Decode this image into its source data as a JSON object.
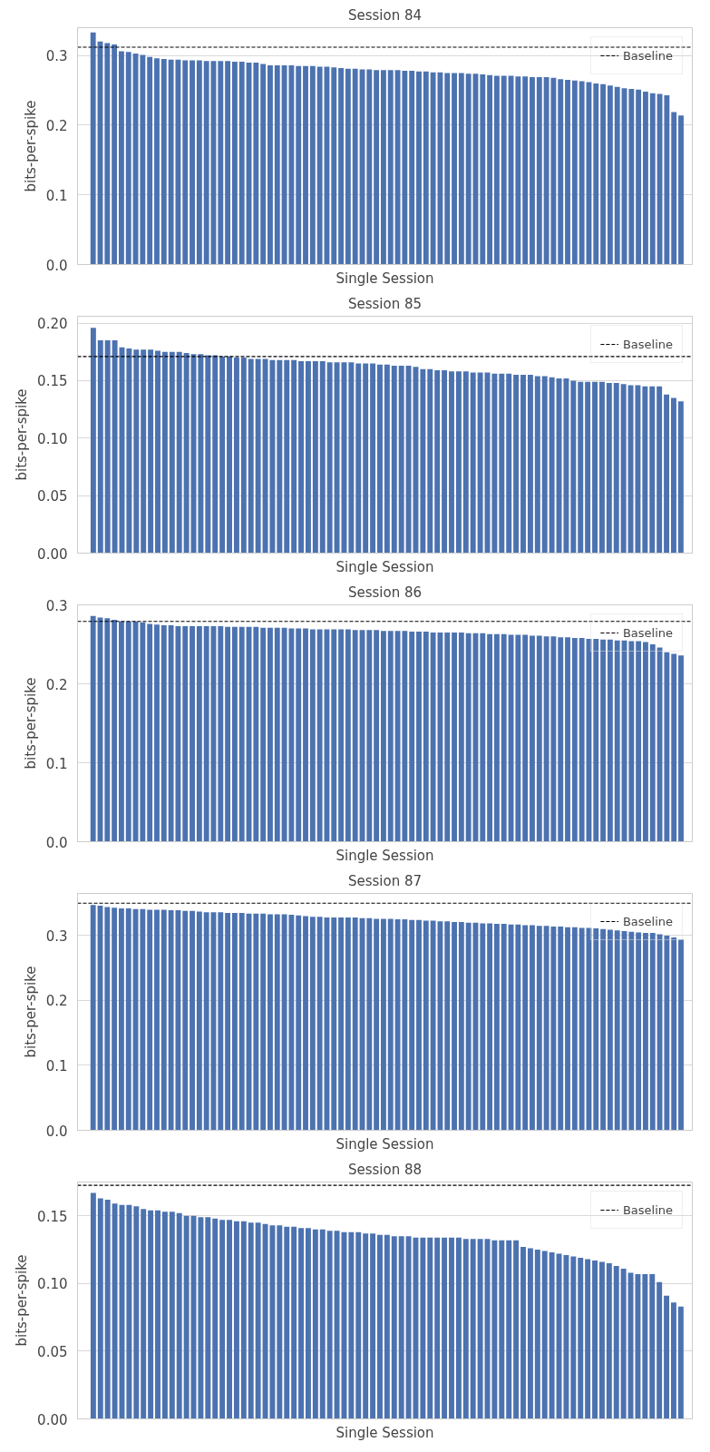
{
  "chart_data": [
    {
      "type": "bar",
      "title": "Session 84",
      "xlabel": "Single Session",
      "ylabel": "bits-per-spike",
      "color": "#4c72b0",
      "grid": "y",
      "legend": "top right",
      "tick_labels": "y",
      "categories": [
        null,
        null,
        null,
        null,
        null,
        null,
        null,
        null,
        null,
        null,
        null,
        null,
        null,
        null,
        null,
        null,
        null,
        null,
        null,
        null,
        null,
        null,
        null,
        null,
        null,
        null,
        null,
        null,
        null,
        null,
        null,
        null,
        null,
        null,
        null,
        null,
        null,
        null,
        null,
        null,
        null,
        null,
        null,
        null,
        null,
        null,
        null,
        null,
        null,
        null,
        null,
        null,
        null,
        null,
        null,
        null,
        null,
        null,
        null,
        null,
        null,
        null,
        null,
        null,
        null,
        null,
        null,
        null,
        null,
        null,
        null,
        null,
        null,
        null,
        null,
        null,
        null,
        null,
        null,
        null,
        null,
        null,
        null,
        null
      ],
      "values": [
        0.333,
        0.32,
        0.318,
        0.316,
        0.306,
        0.305,
        0.303,
        0.301,
        0.298,
        0.296,
        0.295,
        0.294,
        0.294,
        0.293,
        0.293,
        0.293,
        0.292,
        0.292,
        0.292,
        0.292,
        0.291,
        0.291,
        0.29,
        0.29,
        0.288,
        0.286,
        0.286,
        0.286,
        0.286,
        0.285,
        0.285,
        0.285,
        0.284,
        0.284,
        0.283,
        0.282,
        0.281,
        0.281,
        0.28,
        0.28,
        0.279,
        0.279,
        0.279,
        0.279,
        0.278,
        0.278,
        0.277,
        0.277,
        0.276,
        0.276,
        0.275,
        0.275,
        0.275,
        0.274,
        0.274,
        0.273,
        0.272,
        0.271,
        0.271,
        0.271,
        0.27,
        0.27,
        0.269,
        0.269,
        0.269,
        0.268,
        0.266,
        0.265,
        0.264,
        0.263,
        0.262,
        0.26,
        0.259,
        0.257,
        0.255,
        0.253,
        0.252,
        0.251,
        0.248,
        0.246,
        0.245,
        0.243,
        0.219,
        0.214
      ],
      "ylim": [
        0,
        0.34
      ],
      "yticks": [
        {
          "value": 0,
          "label": "0.0"
        },
        0.1,
        0.2,
        0.3
      ],
      "ref_lines": [
        {
          "axis": "y",
          "value": 0.312,
          "label": "Baseline",
          "color": "#000000",
          "line_style": "dashed"
        }
      ]
    },
    {
      "type": "bar",
      "title": "Session 85",
      "xlabel": "Single Session",
      "ylabel": "bits-per-spike",
      "color": "#4c72b0",
      "grid": "y",
      "legend": "top right",
      "tick_labels": "y",
      "categories": [
        null,
        null,
        null,
        null,
        null,
        null,
        null,
        null,
        null,
        null,
        null,
        null,
        null,
        null,
        null,
        null,
        null,
        null,
        null,
        null,
        null,
        null,
        null,
        null,
        null,
        null,
        null,
        null,
        null,
        null,
        null,
        null,
        null,
        null,
        null,
        null,
        null,
        null,
        null,
        null,
        null,
        null,
        null,
        null,
        null,
        null,
        null,
        null,
        null,
        null,
        null,
        null,
        null,
        null,
        null,
        null,
        null,
        null,
        null,
        null,
        null,
        null,
        null,
        null,
        null,
        null,
        null,
        null,
        null,
        null,
        null,
        null,
        null,
        null,
        null,
        null,
        null,
        null,
        null,
        null,
        null,
        null,
        null
      ],
      "values": [
        0.196,
        0.185,
        0.185,
        0.185,
        0.179,
        0.178,
        0.177,
        0.177,
        0.177,
        0.176,
        0.175,
        0.175,
        0.175,
        0.174,
        0.173,
        0.173,
        0.172,
        0.172,
        0.171,
        0.171,
        0.17,
        0.17,
        0.169,
        0.169,
        0.169,
        0.168,
        0.168,
        0.168,
        0.168,
        0.167,
        0.167,
        0.167,
        0.167,
        0.166,
        0.166,
        0.166,
        0.166,
        0.165,
        0.165,
        0.165,
        0.164,
        0.164,
        0.163,
        0.163,
        0.163,
        0.162,
        0.16,
        0.16,
        0.159,
        0.159,
        0.158,
        0.158,
        0.158,
        0.157,
        0.157,
        0.157,
        0.156,
        0.156,
        0.156,
        0.155,
        0.155,
        0.155,
        0.154,
        0.154,
        0.153,
        0.152,
        0.152,
        0.15,
        0.149,
        0.149,
        0.149,
        0.149,
        0.148,
        0.148,
        0.147,
        0.146,
        0.146,
        0.145,
        0.145,
        0.145,
        0.138,
        0.135,
        0.132
      ],
      "ylim": [
        0,
        0.206
      ],
      "yticks": [
        {
          "value": 0,
          "label": "0.00"
        },
        0.05,
        {
          "value": 0.1,
          "label": "0.10"
        },
        0.15,
        {
          "value": 0.2,
          "label": "0.20"
        }
      ],
      "ref_lines": [
        {
          "axis": "y",
          "value": 0.171,
          "label": "Baseline",
          "color": "#000000",
          "line_style": "dashed"
        }
      ]
    },
    {
      "type": "bar",
      "title": "Session 86",
      "xlabel": "Single Session",
      "ylabel": "bits-per-spike",
      "color": "#4c72b0",
      "grid": "y",
      "legend": "top right",
      "tick_labels": "y",
      "categories": [
        null,
        null,
        null,
        null,
        null,
        null,
        null,
        null,
        null,
        null,
        null,
        null,
        null,
        null,
        null,
        null,
        null,
        null,
        null,
        null,
        null,
        null,
        null,
        null,
        null,
        null,
        null,
        null,
        null,
        null,
        null,
        null,
        null,
        null,
        null,
        null,
        null,
        null,
        null,
        null,
        null,
        null,
        null,
        null,
        null,
        null,
        null,
        null,
        null,
        null,
        null,
        null,
        null,
        null,
        null,
        null,
        null,
        null,
        null,
        null,
        null,
        null,
        null,
        null,
        null,
        null,
        null,
        null,
        null,
        null,
        null,
        null,
        null,
        null,
        null,
        null,
        null,
        null,
        null,
        null,
        null,
        null,
        null,
        null
      ],
      "values": [
        0.286,
        0.284,
        0.283,
        0.281,
        0.279,
        0.279,
        0.279,
        0.278,
        0.276,
        0.275,
        0.274,
        0.274,
        0.273,
        0.273,
        0.273,
        0.273,
        0.273,
        0.273,
        0.273,
        0.272,
        0.272,
        0.272,
        0.272,
        0.272,
        0.271,
        0.271,
        0.271,
        0.271,
        0.27,
        0.27,
        0.27,
        0.269,
        0.269,
        0.269,
        0.269,
        0.269,
        0.269,
        0.268,
        0.268,
        0.268,
        0.268,
        0.267,
        0.267,
        0.267,
        0.267,
        0.266,
        0.266,
        0.266,
        0.265,
        0.265,
        0.265,
        0.265,
        0.265,
        0.264,
        0.264,
        0.264,
        0.263,
        0.263,
        0.263,
        0.262,
        0.262,
        0.262,
        0.261,
        0.261,
        0.26,
        0.26,
        0.259,
        0.259,
        0.258,
        0.258,
        0.257,
        0.257,
        0.256,
        0.256,
        0.255,
        0.255,
        0.254,
        0.254,
        0.253,
        0.25,
        0.246,
        0.24,
        0.238,
        0.236
      ],
      "ylim": [
        0,
        0.3
      ],
      "yticks": [
        {
          "value": 0,
          "label": "0.0"
        },
        0.1,
        0.2,
        0.3
      ],
      "ref_lines": [
        {
          "axis": "y",
          "value": 0.279,
          "label": "Baseline",
          "color": "#000000",
          "line_style": "dashed"
        }
      ]
    },
    {
      "type": "bar",
      "title": "Session 87",
      "xlabel": "Single Session",
      "ylabel": "bits-per-spike",
      "color": "#4c72b0",
      "grid": "y",
      "legend": "top right",
      "tick_labels": "y",
      "categories": [
        null,
        null,
        null,
        null,
        null,
        null,
        null,
        null,
        null,
        null,
        null,
        null,
        null,
        null,
        null,
        null,
        null,
        null,
        null,
        null,
        null,
        null,
        null,
        null,
        null,
        null,
        null,
        null,
        null,
        null,
        null,
        null,
        null,
        null,
        null,
        null,
        null,
        null,
        null,
        null,
        null,
        null,
        null,
        null,
        null,
        null,
        null,
        null,
        null,
        null,
        null,
        null,
        null,
        null,
        null,
        null,
        null,
        null,
        null,
        null,
        null,
        null,
        null,
        null,
        null,
        null,
        null,
        null,
        null,
        null,
        null,
        null,
        null,
        null,
        null,
        null,
        null,
        null,
        null,
        null,
        null,
        null,
        null,
        null
      ],
      "values": [
        0.347,
        0.346,
        0.344,
        0.343,
        0.342,
        0.342,
        0.341,
        0.341,
        0.34,
        0.34,
        0.34,
        0.339,
        0.339,
        0.338,
        0.338,
        0.337,
        0.336,
        0.336,
        0.336,
        0.335,
        0.335,
        0.335,
        0.334,
        0.334,
        0.334,
        0.333,
        0.333,
        0.333,
        0.332,
        0.331,
        0.33,
        0.329,
        0.329,
        0.328,
        0.328,
        0.328,
        0.328,
        0.328,
        0.327,
        0.327,
        0.326,
        0.326,
        0.326,
        0.325,
        0.325,
        0.324,
        0.324,
        0.323,
        0.323,
        0.322,
        0.322,
        0.321,
        0.321,
        0.32,
        0.32,
        0.319,
        0.319,
        0.318,
        0.318,
        0.317,
        0.317,
        0.316,
        0.316,
        0.315,
        0.315,
        0.314,
        0.314,
        0.313,
        0.313,
        0.312,
        0.312,
        0.311,
        0.31,
        0.309,
        0.308,
        0.307,
        0.306,
        0.305,
        0.304,
        0.304,
        0.302,
        0.3,
        0.297,
        0.294
      ],
      "ylim": [
        0,
        0.365
      ],
      "yticks": [
        {
          "value": 0,
          "label": "0.0"
        },
        0.1,
        0.2,
        0.3
      ],
      "ref_lines": [
        {
          "axis": "y",
          "value": 0.35,
          "label": "Baseline",
          "color": "#000000",
          "line_style": "dashed"
        }
      ]
    },
    {
      "type": "bar",
      "title": "Session 88",
      "xlabel": "Single Session",
      "ylabel": "bits-per-spike",
      "color": "#4c72b0",
      "grid": "y",
      "legend": "top right",
      "tick_labels": "y",
      "categories": [
        null,
        null,
        null,
        null,
        null,
        null,
        null,
        null,
        null,
        null,
        null,
        null,
        null,
        null,
        null,
        null,
        null,
        null,
        null,
        null,
        null,
        null,
        null,
        null,
        null,
        null,
        null,
        null,
        null,
        null,
        null,
        null,
        null,
        null,
        null,
        null,
        null,
        null,
        null,
        null,
        null,
        null,
        null,
        null,
        null,
        null,
        null,
        null,
        null,
        null,
        null,
        null,
        null,
        null,
        null,
        null,
        null,
        null,
        null,
        null,
        null,
        null,
        null,
        null,
        null,
        null,
        null,
        null,
        null,
        null,
        null,
        null,
        null,
        null,
        null,
        null,
        null,
        null,
        null,
        null,
        null,
        null,
        null
      ],
      "values": [
        0.167,
        0.163,
        0.162,
        0.159,
        0.158,
        0.158,
        0.157,
        0.155,
        0.154,
        0.154,
        0.153,
        0.153,
        0.152,
        0.15,
        0.15,
        0.149,
        0.149,
        0.148,
        0.147,
        0.147,
        0.146,
        0.146,
        0.145,
        0.145,
        0.144,
        0.143,
        0.143,
        0.142,
        0.142,
        0.141,
        0.141,
        0.14,
        0.14,
        0.139,
        0.139,
        0.138,
        0.138,
        0.138,
        0.137,
        0.137,
        0.136,
        0.136,
        0.135,
        0.135,
        0.135,
        0.134,
        0.134,
        0.134,
        0.134,
        0.134,
        0.134,
        0.134,
        0.133,
        0.133,
        0.133,
        0.133,
        0.132,
        0.132,
        0.132,
        0.132,
        0.127,
        0.126,
        0.125,
        0.124,
        0.123,
        0.122,
        0.121,
        0.12,
        0.119,
        0.118,
        0.117,
        0.116,
        0.115,
        0.113,
        0.111,
        0.108,
        0.107,
        0.107,
        0.107,
        0.101,
        0.091,
        0.086,
        0.083
      ],
      "ylim": [
        0,
        0.175
      ],
      "yticks": [
        {
          "value": 0,
          "label": "0.00"
        },
        0.05,
        {
          "value": 0.1,
          "label": "0.10"
        },
        0.15
      ],
      "ref_lines": [
        {
          "axis": "y",
          "value": 0.1726,
          "label": "Baseline",
          "color": "#000000",
          "line_style": "dashed"
        }
      ]
    }
  ]
}
